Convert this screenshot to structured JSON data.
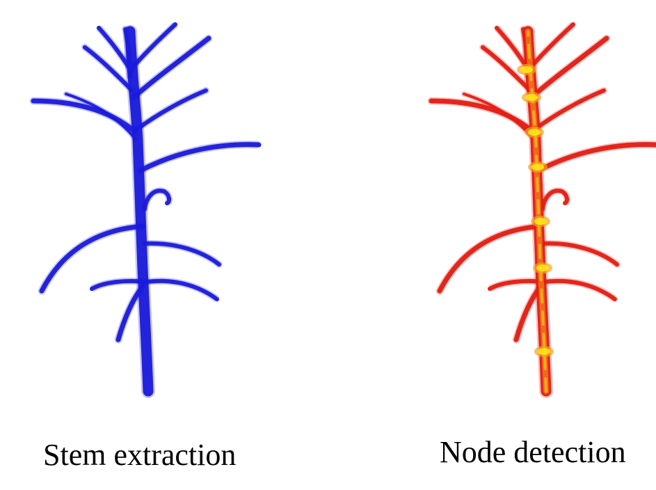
{
  "figure": {
    "left_panel": {
      "caption": "Stem extraction",
      "color": "#1a1adb"
    },
    "right_panel": {
      "caption": "Node detection",
      "stem_color": "#e31d12",
      "node_color": "#ffe21a",
      "node_glow_color": "#f6a21f"
    }
  }
}
